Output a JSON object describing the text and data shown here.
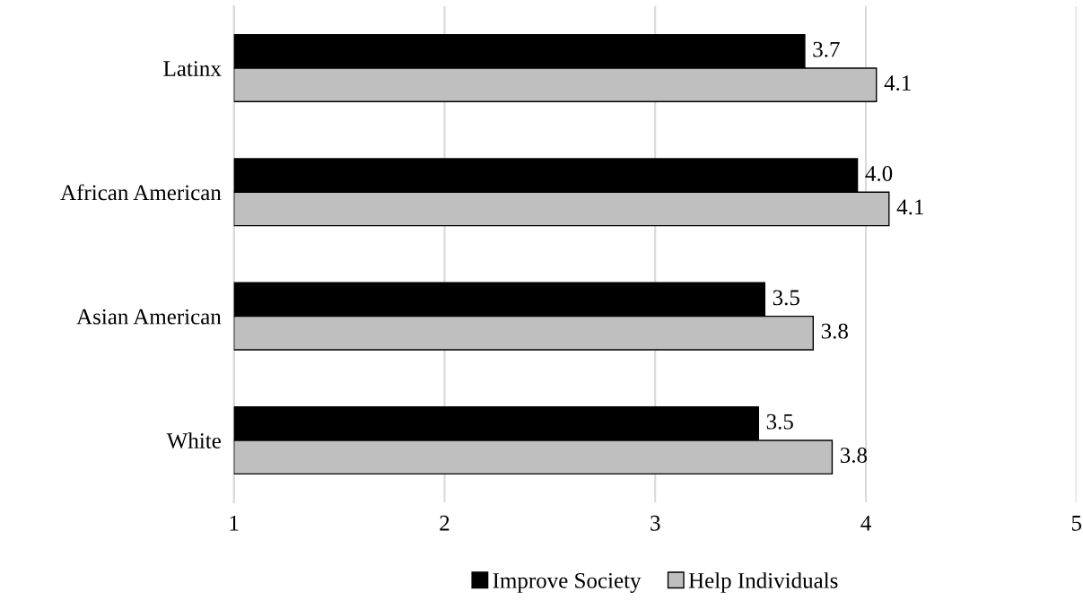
{
  "chart_data": {
    "type": "bar",
    "orientation": "horizontal",
    "categories": [
      "Latinx",
      "African American",
      "Asian American",
      "White"
    ],
    "series": [
      {
        "name": "Improve Society",
        "color": "#000000",
        "values": [
          3.71,
          3.96,
          3.52,
          3.49
        ],
        "value_labels": [
          "3.7",
          "4.0",
          "3.5",
          "3.5"
        ]
      },
      {
        "name": "Help Individuals",
        "color": "#bfbfbf",
        "values": [
          4.05,
          4.11,
          3.75,
          3.84
        ],
        "value_labels": [
          "4.1",
          "4.1",
          "3.8",
          "3.8"
        ]
      }
    ],
    "xlim": [
      1,
      5
    ],
    "xticks": [
      1,
      2,
      3,
      4,
      5
    ],
    "grid": "x",
    "legend": "bottom"
  }
}
